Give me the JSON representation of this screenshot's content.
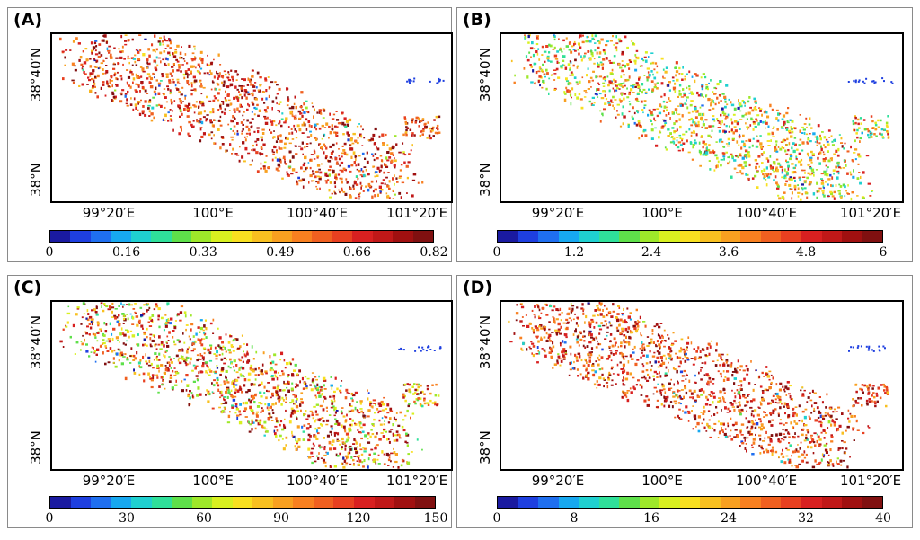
{
  "panels": [
    {
      "label": "(A)",
      "y_ticks": [
        "38°40′N",
        "38°N"
      ],
      "x_ticks": [
        "99°20′E",
        "100°E",
        "100°40′E",
        "101°20′E"
      ],
      "colorbar_ticks": [
        "0",
        "0.16",
        "0.33",
        "0.49",
        "0.66",
        "0.82"
      ],
      "colorbar_range": [
        0,
        0.82
      ],
      "dominant": "red"
    },
    {
      "label": "(B)",
      "y_ticks": [
        "38°40′N",
        "38°N"
      ],
      "x_ticks": [
        "99°20′E",
        "100°E",
        "100°40′E",
        "101°20′E"
      ],
      "colorbar_ticks": [
        "0",
        "1.2",
        "2.4",
        "3.6",
        "4.8",
        "6"
      ],
      "colorbar_range": [
        0,
        6
      ],
      "dominant": "green"
    },
    {
      "label": "(C)",
      "y_ticks": [
        "38°40′N",
        "38°N"
      ],
      "x_ticks": [
        "99°20′E",
        "100°E",
        "100°40′E",
        "101°20′E"
      ],
      "colorbar_ticks": [
        "0",
        "30",
        "60",
        "90",
        "120",
        "150"
      ],
      "colorbar_range": [
        0,
        150
      ],
      "dominant": "orange"
    },
    {
      "label": "(D)",
      "y_ticks": [
        "38°40′N",
        "38°N"
      ],
      "x_ticks": [
        "99°20′E",
        "100°E",
        "100°40′E",
        "101°20′E"
      ],
      "colorbar_ticks": [
        "0",
        "8",
        "16",
        "24",
        "32",
        "40"
      ],
      "colorbar_range": [
        0,
        40
      ],
      "dominant": "red"
    }
  ],
  "colors": {
    "colormap": [
      "#1a1aa0",
      "#1e3fe0",
      "#1f6ff0",
      "#17a8f0",
      "#1fd0d0",
      "#2fe09a",
      "#5ee04a",
      "#9ee82a",
      "#d8f020",
      "#f8e020",
      "#f8c020",
      "#f8a020",
      "#f88020",
      "#f06020",
      "#e84020",
      "#d82020",
      "#c01818",
      "#a01010",
      "#801010"
    ],
    "frame": "#000000",
    "panel_border": "#8a8a8a"
  }
}
